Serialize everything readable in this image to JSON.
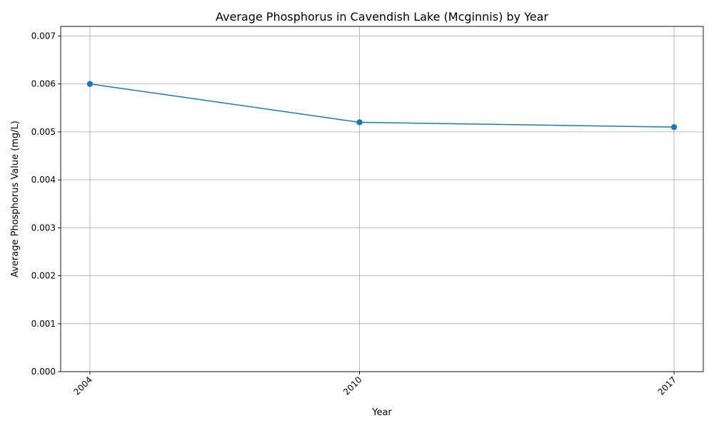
{
  "chart_data": {
    "type": "line",
    "title": "Average Phosphorus in Cavendish Lake (Mcginnis) by Year",
    "xlabel": "Year",
    "ylabel": "Average Phosphorus Value (mg/L)",
    "x": [
      2004,
      2010,
      2017
    ],
    "x_tick_labels": [
      "2004",
      "2010",
      "2017"
    ],
    "y_ticks": [
      "0.000",
      "0.001",
      "0.002",
      "0.003",
      "0.004",
      "0.005",
      "0.006",
      "0.007"
    ],
    "ylim": [
      0,
      0.0072
    ],
    "xlim": [
      2003.35,
      2017.65
    ],
    "grid": true,
    "series": [
      {
        "values": [
          0.006,
          0.0052,
          0.0051
        ],
        "color": "#1f77b4",
        "marker": "circle"
      }
    ]
  }
}
